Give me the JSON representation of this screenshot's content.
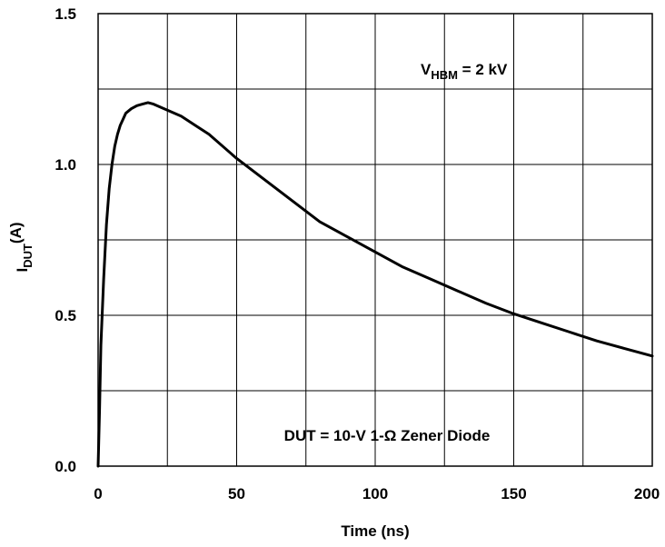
{
  "chart_data": {
    "type": "line",
    "xlabel": "Time (ns)",
    "ylabel": {
      "main": "I",
      "sub": "DUT",
      "sup": "(A)"
    },
    "xlim": [
      0,
      200
    ],
    "ylim": [
      0,
      1.5
    ],
    "xticks": [
      0,
      50,
      100,
      150,
      200
    ],
    "yticks": [
      0.0,
      0.5,
      1.0,
      1.5
    ],
    "xtick_labels": [
      "0",
      "50",
      "100",
      "150",
      "200"
    ],
    "ytick_labels": [
      "0.0",
      "0.5",
      "1.0",
      "1.5"
    ],
    "grid": true,
    "grid_x_step": 25,
    "grid_y_step": 0.25,
    "annotations": [
      {
        "id": "vhbm",
        "main": "V",
        "sub": "HBM",
        "rest": " = 2 kV"
      },
      {
        "id": "dut",
        "text": "DUT = 10-V 1-Ω Zener Diode"
      }
    ],
    "series": [
      {
        "x": [
          0,
          0.5,
          1,
          2,
          3,
          4,
          5,
          6,
          7,
          8,
          9,
          10,
          12,
          14,
          16,
          18,
          20,
          25,
          30,
          35,
          40,
          50,
          60,
          70,
          80,
          90,
          100,
          110,
          120,
          130,
          140,
          150,
          160,
          170,
          180,
          190,
          200
        ],
        "y": [
          0.0,
          0.18,
          0.4,
          0.62,
          0.8,
          0.92,
          1.0,
          1.06,
          1.1,
          1.13,
          1.15,
          1.17,
          1.185,
          1.195,
          1.2,
          1.205,
          1.2,
          1.18,
          1.16,
          1.13,
          1.1,
          1.02,
          0.95,
          0.88,
          0.81,
          0.76,
          0.71,
          0.66,
          0.62,
          0.58,
          0.54,
          0.505,
          0.475,
          0.445,
          0.415,
          0.39,
          0.365
        ],
        "color": "#000000"
      }
    ]
  }
}
